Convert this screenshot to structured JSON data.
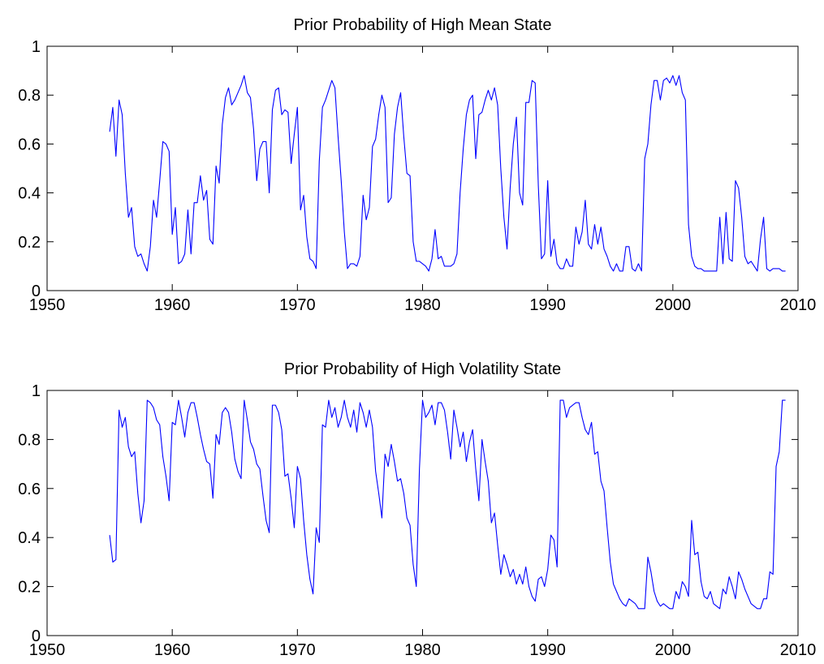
{
  "chart_data": [
    {
      "type": "line",
      "title": "Prior Probability of High Mean State",
      "color": "#0000ff",
      "x": [
        1955,
        1955.25,
        1955.5,
        1955.75,
        1956,
        1956.25,
        1956.5,
        1956.75,
        1957,
        1957.25,
        1957.5,
        1957.75,
        1958,
        1958.25,
        1958.5,
        1958.75,
        1959,
        1959.25,
        1959.5,
        1959.75,
        1960,
        1960.25,
        1960.5,
        1960.75,
        1961,
        1961.25,
        1961.5,
        1961.75,
        1962,
        1962.25,
        1962.5,
        1962.75,
        1963,
        1963.25,
        1963.5,
        1963.75,
        1964,
        1964.25,
        1964.5,
        1964.75,
        1965,
        1965.25,
        1965.5,
        1965.75,
        1966,
        1966.25,
        1966.5,
        1966.75,
        1967,
        1967.25,
        1967.5,
        1967.75,
        1968,
        1968.25,
        1968.5,
        1968.75,
        1969,
        1969.25,
        1969.5,
        1969.75,
        1970,
        1970.25,
        1970.5,
        1970.75,
        1971,
        1971.25,
        1971.5,
        1971.75,
        1972,
        1972.25,
        1972.5,
        1972.75,
        1973,
        1973.25,
        1973.5,
        1973.75,
        1974,
        1974.25,
        1974.5,
        1974.75,
        1975,
        1975.25,
        1975.5,
        1975.75,
        1976,
        1976.25,
        1976.5,
        1976.75,
        1977,
        1977.25,
        1977.5,
        1977.75,
        1978,
        1978.25,
        1978.5,
        1978.75,
        1979,
        1979.25,
        1979.5,
        1979.75,
        1980,
        1980.25,
        1980.5,
        1980.75,
        1981,
        1981.25,
        1981.5,
        1981.75,
        1982,
        1982.25,
        1982.5,
        1982.75,
        1983,
        1983.25,
        1983.5,
        1983.75,
        1984,
        1984.25,
        1984.5,
        1984.75,
        1985,
        1985.25,
        1985.5,
        1985.75,
        1986,
        1986.25,
        1986.5,
        1986.75,
        1987,
        1987.25,
        1987.5,
        1987.75,
        1988,
        1988.25,
        1988.5,
        1988.75,
        1989,
        1989.25,
        1989.5,
        1989.75,
        1990,
        1990.25,
        1990.5,
        1990.75,
        1991,
        1991.25,
        1991.5,
        1991.75,
        1992,
        1992.25,
        1992.5,
        1992.75,
        1993,
        1993.25,
        1993.5,
        1993.75,
        1994,
        1994.25,
        1994.5,
        1994.75,
        1995,
        1995.25,
        1995.5,
        1995.75,
        1996,
        1996.25,
        1996.5,
        1996.75,
        1997,
        1997.25,
        1997.5,
        1997.75,
        1998,
        1998.25,
        1998.5,
        1998.75,
        1999,
        1999.25,
        1999.5,
        1999.75,
        2000,
        2000.25,
        2000.5,
        2000.75,
        2001,
        2001.25,
        2001.5,
        2001.75,
        2002,
        2002.25,
        2002.5,
        2002.75,
        2003,
        2003.25,
        2003.5,
        2003.75,
        2004,
        2004.25,
        2004.5,
        2004.75,
        2005,
        2005.25,
        2005.5,
        2005.75,
        2006,
        2006.25,
        2006.5,
        2006.75,
        2007,
        2007.25,
        2007.5,
        2007.75,
        2008,
        2008.25,
        2008.5,
        2008.75,
        2009
      ],
      "values": [
        0.65,
        0.75,
        0.55,
        0.78,
        0.72,
        0.48,
        0.3,
        0.34,
        0.18,
        0.14,
        0.15,
        0.11,
        0.08,
        0.18,
        0.37,
        0.3,
        0.45,
        0.61,
        0.6,
        0.57,
        0.23,
        0.34,
        0.11,
        0.12,
        0.15,
        0.33,
        0.15,
        0.36,
        0.36,
        0.47,
        0.37,
        0.41,
        0.21,
        0.19,
        0.51,
        0.44,
        0.68,
        0.79,
        0.83,
        0.76,
        0.78,
        0.81,
        0.84,
        0.88,
        0.81,
        0.79,
        0.66,
        0.45,
        0.58,
        0.61,
        0.61,
        0.4,
        0.74,
        0.82,
        0.83,
        0.72,
        0.74,
        0.73,
        0.52,
        0.64,
        0.75,
        0.33,
        0.39,
        0.22,
        0.13,
        0.12,
        0.09,
        0.53,
        0.75,
        0.78,
        0.82,
        0.86,
        0.83,
        0.63,
        0.45,
        0.24,
        0.09,
        0.11,
        0.11,
        0.1,
        0.14,
        0.39,
        0.29,
        0.34,
        0.59,
        0.62,
        0.72,
        0.8,
        0.75,
        0.36,
        0.38,
        0.64,
        0.75,
        0.81,
        0.63,
        0.48,
        0.47,
        0.2,
        0.12,
        0.12,
        0.11,
        0.1,
        0.08,
        0.13,
        0.25,
        0.13,
        0.14,
        0.1,
        0.1,
        0.1,
        0.11,
        0.15,
        0.4,
        0.58,
        0.72,
        0.78,
        0.8,
        0.54,
        0.72,
        0.73,
        0.78,
        0.82,
        0.78,
        0.83,
        0.76,
        0.5,
        0.3,
        0.17,
        0.42,
        0.6,
        0.71,
        0.4,
        0.35,
        0.77,
        0.77,
        0.86,
        0.85,
        0.43,
        0.13,
        0.15,
        0.45,
        0.14,
        0.21,
        0.11,
        0.09,
        0.09,
        0.13,
        0.1,
        0.1,
        0.26,
        0.19,
        0.24,
        0.37,
        0.19,
        0.17,
        0.27,
        0.19,
        0.26,
        0.17,
        0.14,
        0.1,
        0.08,
        0.11,
        0.08,
        0.08,
        0.18,
        0.18,
        0.09,
        0.08,
        0.11,
        0.08,
        0.54,
        0.6,
        0.76,
        0.86,
        0.86,
        0.78,
        0.86,
        0.87,
        0.85,
        0.88,
        0.84,
        0.88,
        0.81,
        0.78,
        0.27,
        0.14,
        0.1,
        0.09,
        0.09,
        0.08,
        0.08,
        0.08,
        0.08,
        0.08,
        0.3,
        0.11,
        0.32,
        0.13,
        0.12,
        0.45,
        0.42,
        0.3,
        0.14,
        0.11,
        0.12,
        0.1,
        0.08,
        0.21,
        0.3,
        0.09,
        0.08,
        0.09,
        0.09,
        0.09,
        0.08,
        0.08
      ],
      "xlim": [
        1950,
        2010
      ],
      "xticks": [
        1950,
        1960,
        1970,
        1980,
        1990,
        2000,
        2010
      ],
      "ylim": [
        0,
        1
      ],
      "yticks": [
        0,
        0.2,
        0.4,
        0.6,
        0.8,
        1
      ]
    },
    {
      "type": "line",
      "title": "Prior Probability of High Volatility State",
      "color": "#0000ff",
      "x": [
        1955,
        1955.25,
        1955.5,
        1955.75,
        1956,
        1956.25,
        1956.5,
        1956.75,
        1957,
        1957.25,
        1957.5,
        1957.75,
        1958,
        1958.25,
        1958.5,
        1958.75,
        1959,
        1959.25,
        1959.5,
        1959.75,
        1960,
        1960.25,
        1960.5,
        1960.75,
        1961,
        1961.25,
        1961.5,
        1961.75,
        1962,
        1962.25,
        1962.5,
        1962.75,
        1963,
        1963.25,
        1963.5,
        1963.75,
        1964,
        1964.25,
        1964.5,
        1964.75,
        1965,
        1965.25,
        1965.5,
        1965.75,
        1966,
        1966.25,
        1966.5,
        1966.75,
        1967,
        1967.25,
        1967.5,
        1967.75,
        1968,
        1968.25,
        1968.5,
        1968.75,
        1969,
        1969.25,
        1969.5,
        1969.75,
        1970,
        1970.25,
        1970.5,
        1970.75,
        1971,
        1971.25,
        1971.5,
        1971.75,
        1972,
        1972.25,
        1972.5,
        1972.75,
        1973,
        1973.25,
        1973.5,
        1973.75,
        1974,
        1974.25,
        1974.5,
        1974.75,
        1975,
        1975.25,
        1975.5,
        1975.75,
        1976,
        1976.25,
        1976.5,
        1976.75,
        1977,
        1977.25,
        1977.5,
        1977.75,
        1978,
        1978.25,
        1978.5,
        1978.75,
        1979,
        1979.25,
        1979.5,
        1979.75,
        1980,
        1980.25,
        1980.5,
        1980.75,
        1981,
        1981.25,
        1981.5,
        1981.75,
        1982,
        1982.25,
        1982.5,
        1982.75,
        1983,
        1983.25,
        1983.5,
        1983.75,
        1984,
        1984.25,
        1984.5,
        1984.75,
        1985,
        1985.25,
        1985.5,
        1985.75,
        1986,
        1986.25,
        1986.5,
        1986.75,
        1987,
        1987.25,
        1987.5,
        1987.75,
        1988,
        1988.25,
        1988.5,
        1988.75,
        1989,
        1989.25,
        1989.5,
        1989.75,
        1990,
        1990.25,
        1990.5,
        1990.75,
        1991,
        1991.25,
        1991.5,
        1991.75,
        1992,
        1992.25,
        1992.5,
        1992.75,
        1993,
        1993.25,
        1993.5,
        1993.75,
        1994,
        1994.25,
        1994.5,
        1994.75,
        1995,
        1995.25,
        1995.5,
        1995.75,
        1996,
        1996.25,
        1996.5,
        1996.75,
        1997,
        1997.25,
        1997.5,
        1997.75,
        1998,
        1998.25,
        1998.5,
        1998.75,
        1999,
        1999.25,
        1999.5,
        1999.75,
        2000,
        2000.25,
        2000.5,
        2000.75,
        2001,
        2001.25,
        2001.5,
        2001.75,
        2002,
        2002.25,
        2002.5,
        2002.75,
        2003,
        2003.25,
        2003.5,
        2003.75,
        2004,
        2004.25,
        2004.5,
        2004.75,
        2005,
        2005.25,
        2005.5,
        2005.75,
        2006,
        2006.25,
        2006.5,
        2006.75,
        2007,
        2007.25,
        2007.5,
        2007.75,
        2008,
        2008.25,
        2008.5,
        2008.75,
        2009
      ],
      "values": [
        0.41,
        0.3,
        0.31,
        0.92,
        0.85,
        0.89,
        0.77,
        0.73,
        0.75,
        0.58,
        0.46,
        0.55,
        0.96,
        0.95,
        0.93,
        0.88,
        0.86,
        0.73,
        0.65,
        0.55,
        0.87,
        0.86,
        0.96,
        0.89,
        0.81,
        0.91,
        0.95,
        0.95,
        0.89,
        0.82,
        0.76,
        0.71,
        0.7,
        0.56,
        0.82,
        0.78,
        0.91,
        0.93,
        0.91,
        0.83,
        0.72,
        0.67,
        0.64,
        0.96,
        0.88,
        0.79,
        0.76,
        0.7,
        0.68,
        0.57,
        0.47,
        0.42,
        0.94,
        0.94,
        0.91,
        0.84,
        0.65,
        0.66,
        0.56,
        0.44,
        0.69,
        0.64,
        0.47,
        0.33,
        0.23,
        0.17,
        0.44,
        0.38,
        0.86,
        0.85,
        0.96,
        0.89,
        0.93,
        0.85,
        0.89,
        0.96,
        0.89,
        0.85,
        0.92,
        0.83,
        0.95,
        0.91,
        0.85,
        0.92,
        0.85,
        0.67,
        0.58,
        0.48,
        0.74,
        0.69,
        0.78,
        0.71,
        0.63,
        0.64,
        0.58,
        0.48,
        0.45,
        0.29,
        0.2,
        0.68,
        0.96,
        0.89,
        0.91,
        0.94,
        0.86,
        0.95,
        0.95,
        0.92,
        0.83,
        0.72,
        0.92,
        0.85,
        0.77,
        0.83,
        0.71,
        0.79,
        0.84,
        0.68,
        0.55,
        0.8,
        0.71,
        0.63,
        0.46,
        0.5,
        0.37,
        0.25,
        0.33,
        0.29,
        0.24,
        0.27,
        0.21,
        0.25,
        0.21,
        0.28,
        0.2,
        0.16,
        0.14,
        0.23,
        0.24,
        0.2,
        0.27,
        0.41,
        0.39,
        0.28,
        0.96,
        0.96,
        0.89,
        0.93,
        0.94,
        0.95,
        0.95,
        0.89,
        0.84,
        0.82,
        0.87,
        0.74,
        0.75,
        0.63,
        0.59,
        0.44,
        0.3,
        0.21,
        0.18,
        0.15,
        0.13,
        0.12,
        0.15,
        0.14,
        0.13,
        0.11,
        0.11,
        0.11,
        0.32,
        0.26,
        0.18,
        0.14,
        0.12,
        0.13,
        0.12,
        0.11,
        0.11,
        0.18,
        0.15,
        0.22,
        0.2,
        0.16,
        0.47,
        0.33,
        0.34,
        0.22,
        0.16,
        0.15,
        0.18,
        0.13,
        0.12,
        0.11,
        0.19,
        0.17,
        0.24,
        0.2,
        0.15,
        0.26,
        0.23,
        0.19,
        0.16,
        0.13,
        0.12,
        0.11,
        0.11,
        0.15,
        0.15,
        0.26,
        0.25,
        0.69,
        0.75,
        0.96,
        0.96
      ],
      "xlim": [
        1950,
        2010
      ],
      "xticks": [
        1950,
        1960,
        1970,
        1980,
        1990,
        2000,
        2010
      ],
      "ylim": [
        0,
        1
      ],
      "yticks": [
        0,
        0.2,
        0.4,
        0.6,
        0.8,
        1
      ]
    }
  ]
}
